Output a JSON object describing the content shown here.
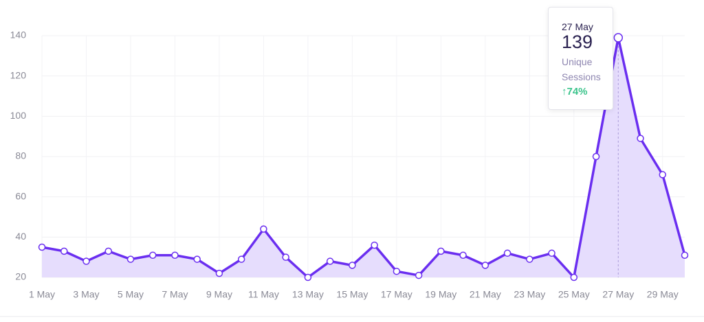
{
  "chart_data": {
    "type": "line",
    "categories": [
      "1 May",
      null,
      "3 May",
      null,
      "5 May",
      null,
      "7 May",
      null,
      "9 May",
      null,
      "11 May",
      null,
      "13 May",
      null,
      "15 May",
      null,
      "17 May",
      null,
      "19 May",
      null,
      "21 May",
      null,
      "23 May",
      null,
      "25 May",
      null,
      "27 May",
      null,
      "29 May",
      null
    ],
    "values": [
      35,
      33,
      28,
      33,
      29,
      31,
      31,
      29,
      22,
      29,
      44,
      30,
      20,
      28,
      26,
      36,
      23,
      21,
      33,
      31,
      26,
      32,
      29,
      32,
      20,
      80,
      139,
      89,
      71,
      31
    ],
    "color": "#6a2ef0",
    "fill": "#e6ddfd",
    "ylim": [
      20,
      140
    ],
    "yticks": [
      20,
      40,
      60,
      80,
      100,
      120,
      140
    ],
    "grid": true,
    "tooltip": {
      "date": "27 May",
      "value": 139,
      "label": "Unique Sessions",
      "change": "↑74%"
    }
  }
}
